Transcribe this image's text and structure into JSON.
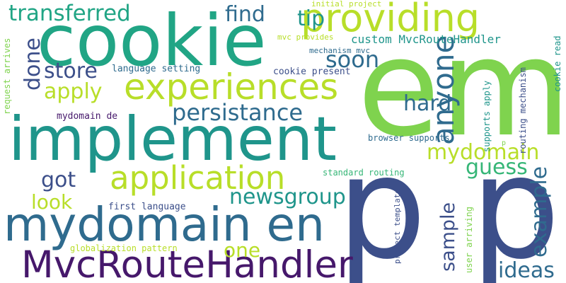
{
  "palette": {
    "purple": "#46186b",
    "indigo": "#3c4f8a",
    "blue": "#2f6b8e",
    "teal": "#1f958b",
    "green": "#36b677",
    "lime": "#7fd34e",
    "yellowgreen": "#b8de29",
    "yellow": "#dde318"
  },
  "words": [
    {
      "id": "em",
      "text": "em",
      "color": "#7fd34e"
    },
    {
      "id": "p-left",
      "text": "p",
      "color": "#3c4f8a"
    },
    {
      "id": "p-right",
      "text": "p",
      "color": "#3c4f8a"
    },
    {
      "id": "cookie",
      "text": "cookie",
      "color": "#21a585"
    },
    {
      "id": "implement",
      "text": "implement",
      "color": "#1f958b"
    },
    {
      "id": "mydomain-en",
      "text": "mydomain en",
      "color": "#2f6b8e"
    },
    {
      "id": "mvcroutehandler",
      "text": "MvcRouteHandler",
      "color": "#46186b"
    },
    {
      "id": "providing",
      "text": "providing",
      "color": "#b8de29"
    },
    {
      "id": "experiences",
      "text": "experiences",
      "color": "#b8de29"
    },
    {
      "id": "application",
      "text": "application",
      "color": "#b8de29"
    },
    {
      "id": "anyone",
      "text": "anyone",
      "color": "#2f6b8e"
    },
    {
      "id": "transferred",
      "text": "transferred",
      "color": "#21a585"
    },
    {
      "id": "persistance",
      "text": "persistance",
      "color": "#2f6b8e"
    },
    {
      "id": "mydomain",
      "text": "mydomain",
      "color": "#b8de29"
    },
    {
      "id": "newsgroup",
      "text": "newsgroup",
      "color": "#1f958b"
    },
    {
      "id": "find",
      "text": "find",
      "color": "#2f6b8e"
    },
    {
      "id": "tip",
      "text": "tip",
      "color": "#1f958b"
    },
    {
      "id": "soon",
      "text": "soon",
      "color": "#2f6b8e"
    },
    {
      "id": "store",
      "text": "store",
      "color": "#3c4f8a"
    },
    {
      "id": "apply",
      "text": "apply",
      "color": "#b8de29"
    },
    {
      "id": "done",
      "text": "done",
      "color": "#3c4f8a"
    },
    {
      "id": "hard",
      "text": "hard",
      "color": "#2f6b8e"
    },
    {
      "id": "guess",
      "text": "guess",
      "color": "#36b677"
    },
    {
      "id": "example",
      "text": "example",
      "color": "#2f6b8e"
    },
    {
      "id": "sample",
      "text": "sample",
      "color": "#3c4f8a"
    },
    {
      "id": "ideas",
      "text": "ideas",
      "color": "#2f6b8e"
    },
    {
      "id": "got",
      "text": "got",
      "color": "#3c4f8a"
    },
    {
      "id": "look",
      "text": "look",
      "color": "#b8de29"
    },
    {
      "id": "one",
      "text": "one",
      "color": "#b8de29"
    },
    {
      "id": "custom-mvcroutehandler",
      "text": "custom MvcRouteHandler",
      "color": "#1f958b"
    },
    {
      "id": "language-setting",
      "text": "language setting",
      "color": "#2f6b8e"
    },
    {
      "id": "cookie-present",
      "text": "cookie present",
      "color": "#3c4f8a"
    },
    {
      "id": "mydomain-de",
      "text": "mydomain de",
      "color": "#46186b"
    },
    {
      "id": "first-language",
      "text": "first language",
      "color": "#3c4f8a"
    },
    {
      "id": "globalization-pattern",
      "text": "globalization pattern",
      "color": "#b8de29"
    },
    {
      "id": "standard-routing",
      "text": "standard routing",
      "color": "#36b677"
    },
    {
      "id": "browser-supports",
      "text": "browser supports",
      "color": "#2f6b8e"
    },
    {
      "id": "initial-project",
      "text": "initial project",
      "color": "#b8de29"
    },
    {
      "id": "mvc-provides",
      "text": "mvc provides",
      "color": "#b8de29"
    },
    {
      "id": "mechanism-mvc",
      "text": "mechanism mvc",
      "color": "#2f6b8e"
    },
    {
      "id": "request-arrives",
      "text": "request arrives",
      "color": "#7fd34e"
    },
    {
      "id": "supports-apply",
      "text": "supports apply",
      "color": "#1f958b"
    },
    {
      "id": "routing-mechanism",
      "text": "routing mechanism",
      "color": "#3c4f8a"
    },
    {
      "id": "cookie-read",
      "text": "cookie read",
      "color": "#1f958b"
    },
    {
      "id": "project-template",
      "text": "project template",
      "color": "#3c4f8a"
    },
    {
      "id": "user-arriving",
      "text": "user arriving",
      "color": "#7fd34e"
    },
    {
      "id": "p-small",
      "text": "p",
      "color": "#7fd34e"
    }
  ]
}
